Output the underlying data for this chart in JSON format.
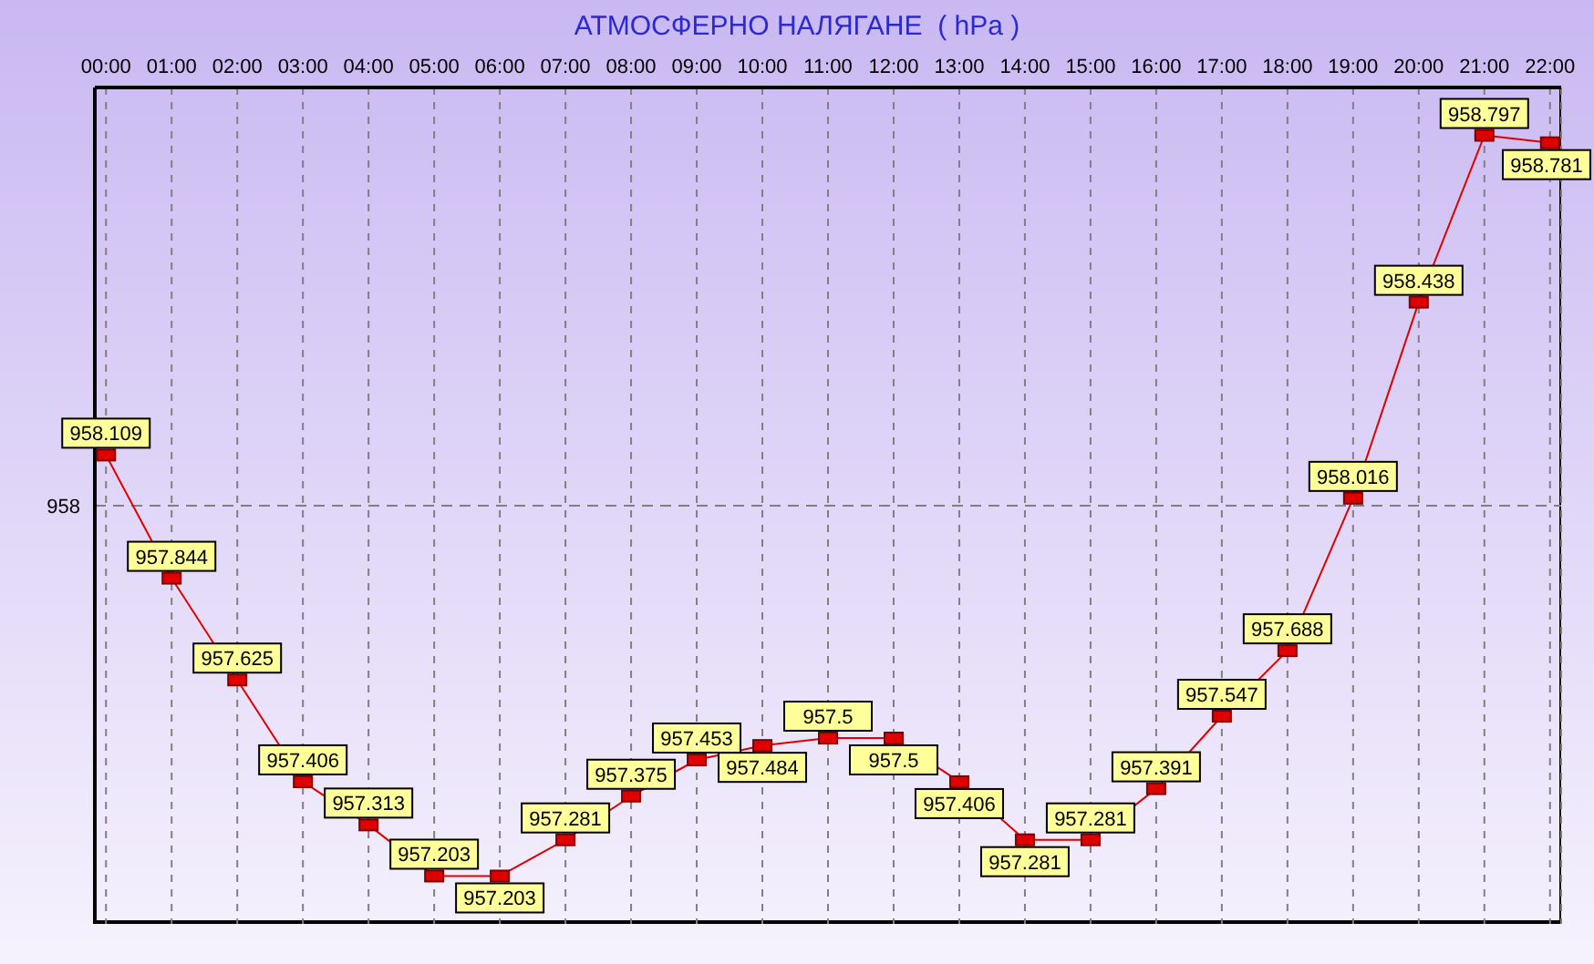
{
  "chart_data": {
    "type": "line",
    "title": "АТМОСФЕРНО НАЛЯГАНЕ  ( hPa )",
    "categories": [
      "00:00",
      "01:00",
      "02:00",
      "03:00",
      "04:00",
      "05:00",
      "06:00",
      "07:00",
      "08:00",
      "09:00",
      "10:00",
      "11:00",
      "12:00",
      "13:00",
      "14:00",
      "15:00",
      "16:00",
      "17:00",
      "18:00",
      "19:00",
      "20:00",
      "21:00",
      "22:00"
    ],
    "values": [
      958.109,
      957.844,
      957.625,
      957.406,
      957.313,
      957.203,
      957.203,
      957.281,
      957.375,
      957.453,
      957.484,
      957.5,
      957.5,
      957.406,
      957.281,
      957.281,
      957.391,
      957.547,
      957.688,
      958.016,
      958.438,
      958.797,
      958.781
    ],
    "color": "#e00000",
    "ylim": [
      957.1,
      958.9
    ],
    "grid": "x",
    "ref_lines": [
      {
        "axis": "y",
        "value": 958,
        "label": "958",
        "color": "#808080",
        "line_style": "dashed"
      }
    ],
    "marker": "square",
    "line_style": "solid",
    "data_labels": true
  }
}
